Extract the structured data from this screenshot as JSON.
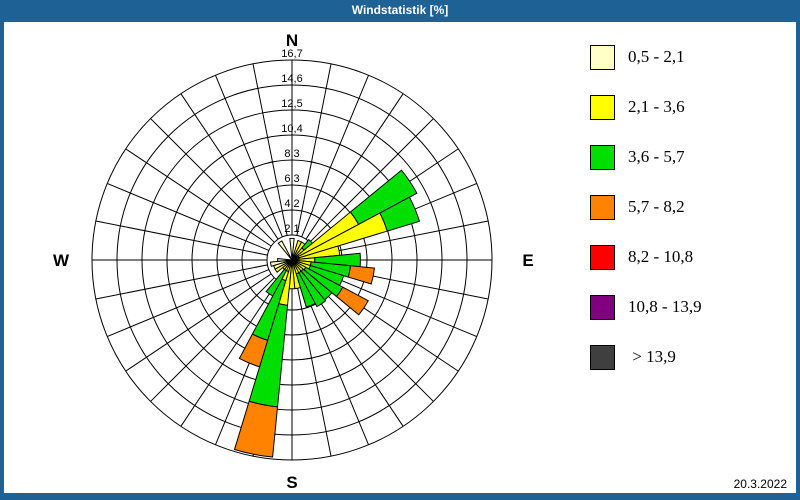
{
  "window": {
    "title": "Windstatistik [%]",
    "date": "20.3.2022"
  },
  "colors": {
    "frame_blue": "#1e6195",
    "cream": "#ffffc8",
    "yellow": "#ffff00",
    "green": "#00df00",
    "orange": "#ff8200",
    "red": "#ff0000",
    "purple": "#800080",
    "dark_gray": "#3f3f3f",
    "grid": "#000000"
  },
  "legend": {
    "position": "right",
    "items": [
      {
        "color_key": "cream",
        "label": "0,5 - 2,1"
      },
      {
        "color_key": "yellow",
        "label": "2,1 - 3,6"
      },
      {
        "color_key": "green",
        "label": "3,6 - 5,7"
      },
      {
        "color_key": "orange",
        "label": "5,7 - 8,2"
      },
      {
        "color_key": "red",
        "label": "8,2 - 10,8"
      },
      {
        "color_key": "purple",
        "label": "10,8 - 13,9"
      },
      {
        "color_key": "dark_gray",
        "label": " > 13,9"
      }
    ]
  },
  "chart_data": {
    "type": "windrose-stacked-polar-bar",
    "title": "Windstatistik [%]",
    "units": "%",
    "sector_count": 32,
    "sector_width_deg": 11.25,
    "grid": true,
    "compass_labels": {
      "n": "N",
      "e": "E",
      "s": "S",
      "w": "W"
    },
    "ring_labels": [
      "2,1",
      "4,2",
      "6,3",
      "8,3",
      "10,4",
      "12,5",
      "14,6",
      "16,7"
    ],
    "ring_values": [
      2.1,
      4.2,
      6.3,
      8.3,
      10.4,
      12.5,
      14.6,
      16.7
    ],
    "radial_max": 16.7,
    "speed_classes": [
      "0,5 - 2,1",
      "2,1 - 3,6",
      "3,6 - 5,7",
      "5,7 - 8,2",
      "8,2 - 10,8",
      "10,8 - 13,9",
      "> 13,9"
    ],
    "petals": [
      {
        "dir_deg": 0,
        "segments": [
          {
            "class": "cream",
            "to": 1.8
          }
        ]
      },
      {
        "dir_deg": 22.5,
        "segments": [
          {
            "class": "cream",
            "to": 0.4
          },
          {
            "class": "yellow",
            "to": 1.7
          }
        ]
      },
      {
        "dir_deg": 33.75,
        "segments": [
          {
            "class": "cream",
            "to": 0.4
          },
          {
            "class": "yellow",
            "to": 1.7
          }
        ]
      },
      {
        "dir_deg": 45,
        "segments": [
          {
            "class": "yellow",
            "to": 1.3
          },
          {
            "class": "green",
            "to": 2.2
          }
        ]
      },
      {
        "dir_deg": 56.25,
        "segments": [
          {
            "class": "cream",
            "to": 0.6
          },
          {
            "class": "yellow",
            "to": 6.3
          },
          {
            "class": "green",
            "to": 11.8
          }
        ]
      },
      {
        "dir_deg": 67.5,
        "segments": [
          {
            "class": "cream",
            "to": 0.6
          },
          {
            "class": "yellow",
            "to": 8.3
          },
          {
            "class": "green",
            "to": 11.1
          }
        ]
      },
      {
        "dir_deg": 78.75,
        "segments": [
          {
            "class": "cream",
            "to": 0.6
          },
          {
            "class": "yellow",
            "to": 4.0
          }
        ]
      },
      {
        "dir_deg": 90,
        "segments": [
          {
            "class": "cream",
            "to": 0.5
          },
          {
            "class": "yellow",
            "to": 1.9
          },
          {
            "class": "green",
            "to": 5.7
          }
        ]
      },
      {
        "dir_deg": 101.25,
        "segments": [
          {
            "class": "cream",
            "to": 0.5
          },
          {
            "class": "yellow",
            "to": 1.6
          },
          {
            "class": "green",
            "to": 4.9
          },
          {
            "class": "orange",
            "to": 6.9
          }
        ]
      },
      {
        "dir_deg": 112.5,
        "segments": [
          {
            "class": "cream",
            "to": 0.5
          },
          {
            "class": "yellow",
            "to": 1.6
          },
          {
            "class": "green",
            "to": 4.5
          }
        ]
      },
      {
        "dir_deg": 123.75,
        "segments": [
          {
            "class": "cream",
            "to": 0.5
          },
          {
            "class": "yellow",
            "to": 1.3
          },
          {
            "class": "green",
            "to": 4.8
          },
          {
            "class": "orange",
            "to": 7.2
          }
        ]
      },
      {
        "dir_deg": 135,
        "segments": [
          {
            "class": "yellow",
            "to": 1.2
          },
          {
            "class": "green",
            "to": 4.3
          }
        ]
      },
      {
        "dir_deg": 146.25,
        "segments": [
          {
            "class": "yellow",
            "to": 1.2
          },
          {
            "class": "green",
            "to": 4.4
          }
        ]
      },
      {
        "dir_deg": 157.5,
        "segments": [
          {
            "class": "yellow",
            "to": 1.2
          },
          {
            "class": "green",
            "to": 4.1
          }
        ]
      },
      {
        "dir_deg": 168.75,
        "segments": [
          {
            "class": "yellow",
            "to": 2.4
          }
        ]
      },
      {
        "dir_deg": 180,
        "segments": [
          {
            "class": "yellow",
            "to": 2.4
          }
        ]
      },
      {
        "dir_deg": 191.25,
        "segments": [
          {
            "class": "cream",
            "to": 0.5
          },
          {
            "class": "yellow",
            "to": 3.8
          },
          {
            "class": "green",
            "to": 12.3
          },
          {
            "class": "orange",
            "to": 16.5
          }
        ]
      },
      {
        "dir_deg": 202.5,
        "segments": [
          {
            "class": "cream",
            "to": 1.0
          },
          {
            "class": "yellow",
            "to": 1.8
          },
          {
            "class": "green",
            "to": 7.0
          },
          {
            "class": "orange",
            "to": 9.3
          }
        ]
      },
      {
        "dir_deg": 213.75,
        "segments": [
          {
            "class": "yellow",
            "to": 1.0
          },
          {
            "class": "green",
            "to": 3.4
          }
        ]
      },
      {
        "dir_deg": 225,
        "segments": [
          {
            "class": "yellow",
            "to": 1.0
          }
        ]
      },
      {
        "dir_deg": 236.25,
        "segments": [
          {
            "class": "yellow",
            "to": 1.6
          }
        ]
      },
      {
        "dir_deg": 247.5,
        "segments": [
          {
            "class": "cream",
            "to": 1.6
          }
        ]
      },
      {
        "dir_deg": 258.75,
        "segments": [
          {
            "class": "cream",
            "to": 1.8
          }
        ]
      },
      {
        "dir_deg": 270,
        "segments": [
          {
            "class": "cream",
            "to": 1.2
          }
        ]
      },
      {
        "dir_deg": 326.25,
        "segments": [
          {
            "class": "cream",
            "to": 1.8
          }
        ]
      }
    ]
  }
}
